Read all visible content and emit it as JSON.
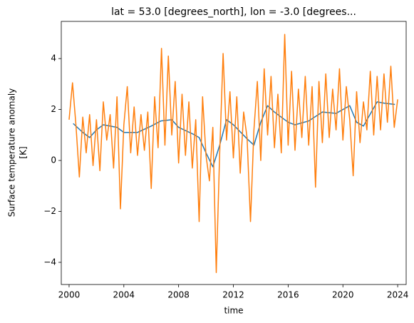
{
  "chart_data": {
    "type": "line",
    "title": "lat = 53.0 [degrees_north], lon = -3.0 [degrees...",
    "xlabel": "time",
    "ylabel": [
      "Surface temperature anomaly",
      "[K]"
    ],
    "xlim": [
      1999.43,
      2024.62
    ],
    "ylim": [
      -4.87,
      5.46
    ],
    "xticks": [
      2000,
      2004,
      2008,
      2012,
      2016,
      2020,
      2024
    ],
    "yticks": [
      {
        "value": -4,
        "label": "−4"
      },
      {
        "value": -2,
        "label": "−2"
      },
      0,
      2,
      4
    ],
    "series": [
      {
        "color": "#1f77b4",
        "x": [
          2000.3,
          2001,
          2001.5,
          2002,
          2002.5,
          2003.5,
          2004,
          2005,
          2006,
          2006.7,
          2007.5,
          2008,
          2009,
          2009.5,
          2010,
          2010.5,
          2011,
          2011.5,
          2012,
          2013,
          2013.5,
          2014,
          2014.5,
          2015,
          2016,
          2016.5,
          2017.5,
          2018.5,
          2019.5,
          2020.5,
          2021,
          2021.5,
          2022.5,
          2023,
          2023.8
        ],
        "values": [
          1.45,
          1.1,
          0.9,
          1.2,
          1.4,
          1.3,
          1.1,
          1.1,
          1.35,
          1.55,
          1.6,
          1.3,
          1.05,
          0.9,
          0.3,
          -0.25,
          0.6,
          1.6,
          1.4,
          0.85,
          0.6,
          1.5,
          2.15,
          1.9,
          1.5,
          1.4,
          1.55,
          1.9,
          1.85,
          2.15,
          1.5,
          1.35,
          2.3,
          2.25,
          2.2
        ]
      },
      {
        "color": "#ff7f0e",
        "x": [
          2000,
          2000.25,
          2000.5,
          2000.75,
          2001,
          2001.25,
          2001.5,
          2001.75,
          2002,
          2002.25,
          2002.5,
          2002.75,
          2003,
          2003.25,
          2003.5,
          2003.75,
          2004,
          2004.25,
          2004.5,
          2004.75,
          2005,
          2005.25,
          2005.5,
          2005.75,
          2006,
          2006.25,
          2006.5,
          2006.75,
          2007,
          2007.25,
          2007.5,
          2007.75,
          2008,
          2008.25,
          2008.5,
          2008.75,
          2009,
          2009.25,
          2009.5,
          2009.75,
          2010,
          2010.25,
          2010.5,
          2010.75,
          2011,
          2011.25,
          2011.5,
          2011.75,
          2012,
          2012.25,
          2012.5,
          2012.75,
          2013,
          2013.25,
          2013.5,
          2013.75,
          2014,
          2014.25,
          2014.5,
          2014.75,
          2015,
          2015.25,
          2015.5,
          2015.75,
          2016,
          2016.25,
          2016.5,
          2016.75,
          2017,
          2017.25,
          2017.5,
          2017.75,
          2018,
          2018.25,
          2018.5,
          2018.75,
          2019,
          2019.25,
          2019.5,
          2019.75,
          2020,
          2020.25,
          2020.5,
          2020.75,
          2021,
          2021.25,
          2021.5,
          2021.75,
          2022,
          2022.25,
          2022.5,
          2022.75,
          2023,
          2023.25,
          2023.5,
          2023.75,
          2024
        ],
        "values": [
          1.6,
          3.05,
          1.4,
          -0.65,
          1.7,
          0.3,
          1.8,
          -0.2,
          1.6,
          -0.4,
          2.3,
          0.8,
          1.8,
          -0.3,
          2.5,
          -1.9,
          1.4,
          2.9,
          0.3,
          2.1,
          0.2,
          1.8,
          0.4,
          1.9,
          -1.1,
          2.5,
          0.5,
          4.4,
          0.6,
          4.1,
          1.0,
          3.1,
          -0.1,
          2.6,
          0.2,
          2.3,
          -0.3,
          1.6,
          -2.4,
          2.5,
          0.2,
          -0.8,
          1.3,
          -4.4,
          0.3,
          4.2,
          0.8,
          2.7,
          0.1,
          2.5,
          -0.5,
          1.9,
          0.9,
          -2.4,
          1.2,
          3.1,
          0.0,
          3.6,
          1.0,
          3.3,
          0.5,
          2.6,
          0.3,
          4.95,
          0.6,
          3.5,
          0.4,
          2.8,
          0.9,
          3.3,
          0.6,
          2.9,
          -1.05,
          3.1,
          0.7,
          3.4,
          0.9,
          2.8,
          1.2,
          3.6,
          0.8,
          2.9,
          1.6,
          -0.6,
          2.7,
          0.7,
          2.3,
          1.2,
          3.5,
          1.0,
          3.3,
          1.2,
          3.4,
          1.5,
          3.7,
          1.3,
          2.4
        ]
      }
    ]
  }
}
